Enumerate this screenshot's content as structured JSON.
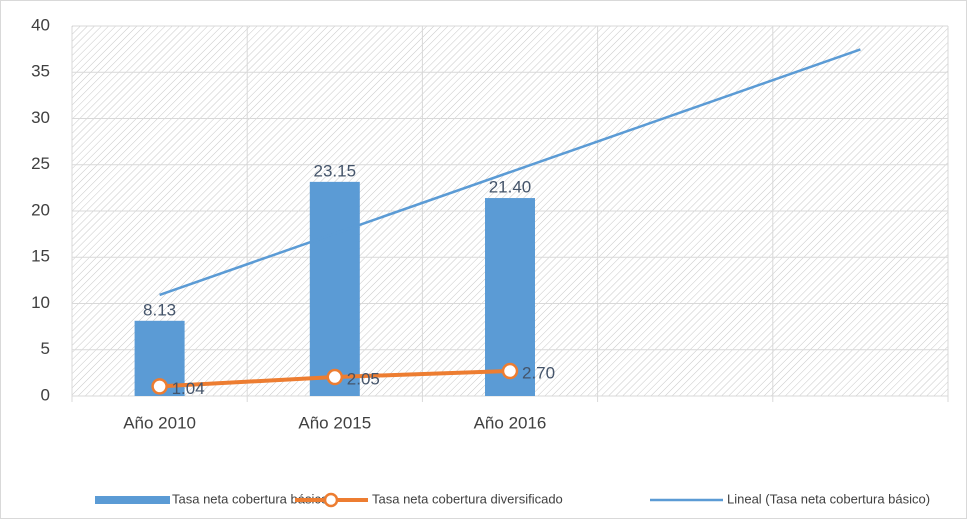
{
  "chart_data": {
    "type": "bar",
    "categories": [
      "Año 2010",
      "Año 2015",
      "Año 2016",
      null,
      null
    ],
    "series": [
      {
        "name": "Tasa neta cobertura básico",
        "type": "bar",
        "color": "#5b9bd5",
        "values": [
          8.13,
          23.15,
          21.4,
          null,
          null
        ],
        "value_labels": [
          "8.13",
          "23.15",
          "21.40",
          null,
          null
        ]
      },
      {
        "name": "Tasa neta cobertura diversificado",
        "type": "line",
        "color": "#ed7d31",
        "values": [
          1.04,
          2.05,
          2.7,
          null,
          null
        ],
        "value_labels": [
          "1.04",
          "2.05",
          "2.70",
          null,
          null
        ]
      },
      {
        "name": "Lineal (Tasa neta cobertura básico)",
        "type": "trend",
        "color": "#5b9bd5",
        "values": [
          10.93,
          17.56,
          24.2,
          30.83,
          37.47
        ]
      }
    ],
    "ylim": [
      0,
      40
    ],
    "yticks": [
      0,
      5,
      10,
      15,
      20,
      25,
      30,
      35,
      40
    ],
    "grid": true,
    "legend": "bottom"
  }
}
